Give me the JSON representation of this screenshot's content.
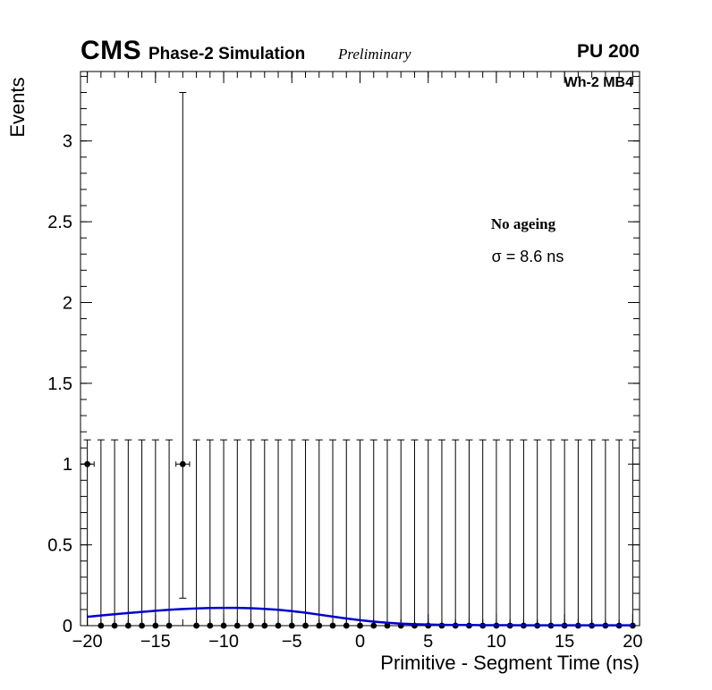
{
  "header": {
    "experiment": "CMS",
    "context": "Phase-2 Simulation",
    "status": "Preliminary",
    "pileup": "PU 200"
  },
  "chart_data": {
    "type": "scatter",
    "title": "",
    "xlabel": "Primitive - Segment Time (ns)",
    "ylabel": "Events",
    "xlim": [
      -20.5,
      20.5
    ],
    "ylim": [
      0,
      3.43
    ],
    "grid": false,
    "legend_position": "none",
    "marker_color": "#000000",
    "curve_color": "#0000cc",
    "bin_half_width": 0.5,
    "x_minor_step": 1,
    "y_minor_step": 0.1,
    "x_ticks": [
      {
        "v": -20,
        "label": "−20"
      },
      {
        "v": -15,
        "label": "−15"
      },
      {
        "v": -10,
        "label": "−10"
      },
      {
        "v": -5,
        "label": "−5"
      },
      {
        "v": 0,
        "label": "0"
      },
      {
        "v": 5,
        "label": "5"
      },
      {
        "v": 10,
        "label": "10"
      },
      {
        "v": 15,
        "label": "15"
      },
      {
        "v": 20,
        "label": "20"
      }
    ],
    "y_ticks": [
      {
        "v": 0,
        "label": "0"
      },
      {
        "v": 0.5,
        "label": "0.5"
      },
      {
        "v": 1,
        "label": "1"
      },
      {
        "v": 1.5,
        "label": "1.5"
      },
      {
        "v": 2,
        "label": "2"
      },
      {
        "v": 2.5,
        "label": "2.5"
      },
      {
        "v": 3,
        "label": "3"
      }
    ],
    "points": [
      [
        -20,
        1,
        0,
        1.15
      ],
      [
        -19,
        0,
        0,
        1.15
      ],
      [
        -18,
        0,
        0,
        1.15
      ],
      [
        -17,
        0,
        0,
        1.15
      ],
      [
        -16,
        0,
        0,
        1.15
      ],
      [
        -15,
        0,
        0,
        1.15
      ],
      [
        -14,
        0,
        0,
        1.15
      ],
      [
        -13,
        1,
        0.17,
        3.3
      ],
      [
        -12,
        0,
        0,
        1.15
      ],
      [
        -11,
        0,
        0,
        1.15
      ],
      [
        -10,
        0,
        0,
        1.15
      ],
      [
        -9,
        0,
        0,
        1.15
      ],
      [
        -8,
        0,
        0,
        1.15
      ],
      [
        -7,
        0,
        0,
        1.15
      ],
      [
        -6,
        0,
        0,
        1.15
      ],
      [
        -5,
        0,
        0,
        1.15
      ],
      [
        -4,
        0,
        0,
        1.15
      ],
      [
        -3,
        0,
        0,
        1.15
      ],
      [
        -2,
        0,
        0,
        1.15
      ],
      [
        -1,
        0,
        0,
        1.15
      ],
      [
        0,
        0,
        0,
        1.15
      ],
      [
        1,
        0,
        0,
        1.15
      ],
      [
        2,
        0,
        0,
        1.15
      ],
      [
        3,
        0,
        0,
        1.15
      ],
      [
        4,
        0,
        0,
        1.15
      ],
      [
        5,
        0,
        0,
        1.15
      ],
      [
        6,
        0,
        0,
        1.15
      ],
      [
        7,
        0,
        0,
        1.15
      ],
      [
        8,
        0,
        0,
        1.15
      ],
      [
        9,
        0,
        0,
        1.15
      ],
      [
        10,
        0,
        0,
        1.15
      ],
      [
        11,
        0,
        0,
        1.15
      ],
      [
        12,
        0,
        0,
        1.15
      ],
      [
        13,
        0,
        0,
        1.15
      ],
      [
        14,
        0,
        0,
        1.15
      ],
      [
        15,
        0,
        0,
        1.15
      ],
      [
        16,
        0,
        0,
        1.15
      ],
      [
        17,
        0,
        0,
        1.15
      ],
      [
        18,
        0,
        0,
        1.15
      ],
      [
        19,
        0,
        0,
        1.15
      ],
      [
        20,
        0,
        0,
        1.15
      ]
    ],
    "fit_curve": {
      "label": "gaussian-fit",
      "x": [
        -20,
        -19,
        -18,
        -17,
        -16,
        -15,
        -14,
        -13,
        -12,
        -11,
        -10,
        -9,
        -8,
        -7,
        -6,
        -5,
        -4,
        -3,
        -2,
        -1,
        0,
        1,
        2,
        3,
        4,
        5,
        6,
        7,
        8,
        9,
        10,
        11,
        12,
        13,
        14,
        15,
        16,
        17,
        18,
        19,
        20
      ],
      "y": [
        0.055,
        0.063,
        0.071,
        0.078,
        0.085,
        0.092,
        0.098,
        0.103,
        0.106,
        0.109,
        0.11,
        0.11,
        0.108,
        0.104,
        0.098,
        0.09,
        0.08,
        0.068,
        0.056,
        0.044,
        0.034,
        0.025,
        0.018,
        0.013,
        0.009,
        0.007,
        0.005,
        0.004,
        0.004,
        0.003,
        0.003,
        0.003,
        0.002,
        0.002,
        0.002,
        0.002,
        0.002,
        0.002,
        0.002,
        0.002,
        0.002
      ]
    },
    "annotations": {
      "region": "Wh-2 MB4",
      "ageing": "No ageing",
      "sigma": "σ = 8.6 ns"
    }
  }
}
